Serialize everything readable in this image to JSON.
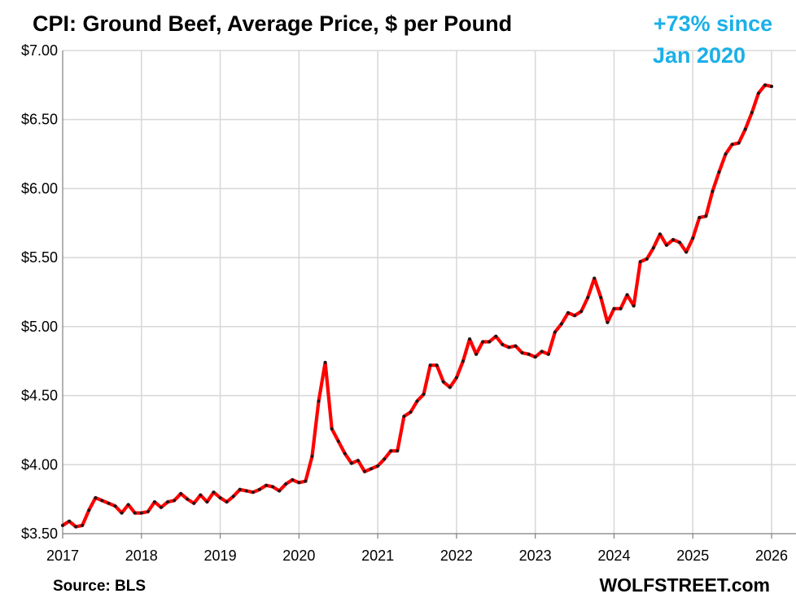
{
  "chart_data": {
    "type": "line",
    "title": "CPI: Ground Beef, Average Price, $ per Pound",
    "annotation_line1": "+73% since",
    "annotation_line2": "Jan 2020",
    "source": "Source: BLS",
    "brand": "WOLFSTREET.com",
    "xlabel": "",
    "ylabel": "",
    "ylim": [
      3.5,
      7.0
    ],
    "xlim": [
      2017,
      2026
    ],
    "y_ticks": [
      {
        "value": 3.5,
        "label": "$3.50"
      },
      {
        "value": 4.0,
        "label": "$4.00"
      },
      {
        "value": 4.5,
        "label": "$4.50"
      },
      {
        "value": 5.0,
        "label": "$5.00"
      },
      {
        "value": 5.5,
        "label": "$5.50"
      },
      {
        "value": 6.0,
        "label": "$6.00"
      },
      {
        "value": 6.5,
        "label": "$6.50"
      },
      {
        "value": 7.0,
        "label": "$7.00"
      }
    ],
    "x_ticks": [
      {
        "value": 2017,
        "label": "2017"
      },
      {
        "value": 2018,
        "label": "2018"
      },
      {
        "value": 2019,
        "label": "2019"
      },
      {
        "value": 2020,
        "label": "2020"
      },
      {
        "value": 2021,
        "label": "2021"
      },
      {
        "value": 2022,
        "label": "2022"
      },
      {
        "value": 2023,
        "label": "2023"
      },
      {
        "value": 2024,
        "label": "2024"
      },
      {
        "value": 2025,
        "label": "2025"
      },
      {
        "value": 2026,
        "label": "2026"
      }
    ],
    "grid": true,
    "colors": {
      "line": "#ff0000",
      "marker": "#1a1a1a",
      "annotation": "#1ab0e8",
      "grid": "#d9d9d9",
      "axis": "#7f7f7f"
    },
    "series": [
      {
        "name": "Ground Beef, $ per Pound",
        "start_year": 2017,
        "start_month": 1,
        "values": [
          3.56,
          3.59,
          3.55,
          3.56,
          3.67,
          3.76,
          3.74,
          3.72,
          3.7,
          3.65,
          3.71,
          3.65,
          3.65,
          3.66,
          3.73,
          3.69,
          3.73,
          3.74,
          3.79,
          3.75,
          3.72,
          3.78,
          3.73,
          3.8,
          3.76,
          3.73,
          3.77,
          3.82,
          3.81,
          3.8,
          3.82,
          3.85,
          3.84,
          3.81,
          3.86,
          3.89,
          3.87,
          3.88,
          4.06,
          4.46,
          4.74,
          4.26,
          4.17,
          4.08,
          4.01,
          4.03,
          3.95,
          3.97,
          3.99,
          4.04,
          4.1,
          4.1,
          4.35,
          4.38,
          4.46,
          4.51,
          4.72,
          4.72,
          4.6,
          4.56,
          4.63,
          4.75,
          4.91,
          4.8,
          4.89,
          4.89,
          4.93,
          4.87,
          4.85,
          4.86,
          4.81,
          4.8,
          4.78,
          4.82,
          4.8,
          4.96,
          5.02,
          5.1,
          5.08,
          5.11,
          5.21,
          5.35,
          5.21,
          5.03,
          5.13,
          5.13,
          5.23,
          5.15,
          5.47,
          5.49,
          5.57,
          5.67,
          5.59,
          5.63,
          5.61,
          5.54,
          5.64,
          5.79,
          5.8,
          5.98,
          6.12,
          6.25,
          6.32,
          6.33,
          6.43,
          6.55,
          6.69,
          6.75,
          6.74
        ]
      }
    ]
  }
}
